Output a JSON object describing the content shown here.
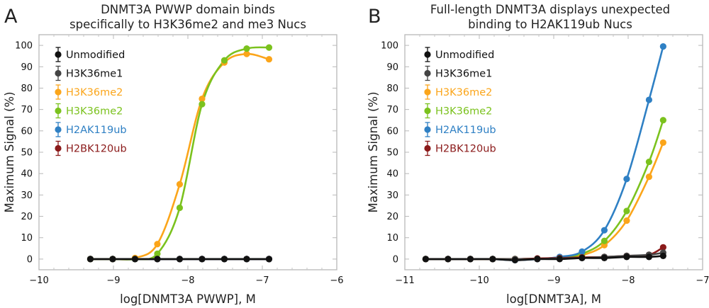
{
  "chart_data": [
    {
      "type": "line",
      "panel_label": "A",
      "title": [
        "DNMT3A PWWP domain binds",
        "specifically to H3K36me2 and me3 Nucs"
      ],
      "xlabel": "log[DNMT3A PWWP], M",
      "ylabel": "Maximum Signal (%)",
      "xlim": [
        -10,
        -6
      ],
      "ylim": [
        -5,
        105
      ],
      "xticks": [
        -10,
        -9,
        -8,
        -7,
        -6
      ],
      "xtick_labels": [
        "−10",
        "−9",
        "−8",
        "−7",
        "−6"
      ],
      "yticks": [
        0,
        10,
        20,
        30,
        40,
        50,
        60,
        70,
        80,
        90,
        100
      ],
      "ytick_labels": [
        "0",
        "10",
        "20",
        "30",
        "40",
        "50",
        "60",
        "70",
        "80",
        "90",
        "100"
      ],
      "legend_position": "top-left",
      "grid": false,
      "x": [
        -9.31,
        -9.01,
        -8.71,
        -8.41,
        -8.11,
        -7.81,
        -7.51,
        -7.21,
        -6.91
      ],
      "series": [
        {
          "name": "Unmodified",
          "color": "#111111",
          "values": [
            0,
            0,
            0,
            0,
            0,
            0,
            0,
            0,
            0
          ]
        },
        {
          "name": "H3K36me1",
          "color": "#444444",
          "values": [
            0,
            0,
            0,
            0,
            0,
            0,
            0,
            0,
            0
          ]
        },
        {
          "name": "H3K36me2",
          "color": "#FBA51A",
          "values": [
            0,
            0,
            0.5,
            7,
            35,
            75,
            92,
            96,
            93.5
          ]
        },
        {
          "name": "H3K36me2",
          "color": "#7BC21E",
          "values": [
            0,
            0,
            0,
            2.5,
            24,
            72.5,
            93,
            98.5,
            99
          ]
        },
        {
          "name": "H2AK119ub",
          "color": "#2F80C4",
          "values": [
            0,
            0,
            0,
            0,
            0,
            0,
            0,
            0,
            0
          ]
        },
        {
          "name": "H2BK120ub",
          "color": "#8B1A1A",
          "values": [
            0,
            0,
            0,
            0,
            0,
            0,
            0,
            0,
            0
          ]
        }
      ],
      "draw_order": [
        5,
        4,
        2,
        3,
        1,
        0
      ]
    },
    {
      "type": "line",
      "panel_label": "B",
      "title": [
        "Full-length DNMT3A displays unexpected",
        "binding to H2AK119ub Nucs"
      ],
      "xlabel": "log[DNMT3A], M",
      "ylabel": "Maximum Signal (%)",
      "xlim": [
        -11,
        -7
      ],
      "ylim": [
        -5,
        105
      ],
      "xticks": [
        -11,
        -10,
        -9,
        -8,
        -7
      ],
      "xtick_labels": [
        "−11",
        "−10",
        "−9",
        "−8",
        "−7"
      ],
      "yticks": [
        0,
        10,
        20,
        30,
        40,
        50,
        60,
        70,
        80,
        90,
        100
      ],
      "ytick_labels": [
        "0",
        "10",
        "20",
        "30",
        "40",
        "50",
        "60",
        "70",
        "80",
        "90",
        "100"
      ],
      "legend_position": "top-left",
      "grid": false,
      "x": [
        -10.72,
        -10.42,
        -10.12,
        -9.82,
        -9.52,
        -9.22,
        -8.92,
        -8.62,
        -8.32,
        -8.02,
        -7.72,
        -7.53
      ],
      "series": [
        {
          "name": "Unmodified",
          "color": "#111111",
          "values": [
            0,
            0,
            0,
            0,
            -0.5,
            0,
            0,
            0.5,
            0.5,
            1,
            1,
            1.5
          ]
        },
        {
          "name": "H3K36me1",
          "color": "#444444",
          "values": [
            0,
            0,
            0,
            0,
            0,
            0,
            0.3,
            0.5,
            1,
            1.5,
            2,
            3
          ]
        },
        {
          "name": "H3K36me2",
          "color": "#FBA51A",
          "values": [
            0,
            0,
            0,
            0,
            0,
            0.2,
            0.5,
            1.8,
            6.5,
            18,
            38.5,
            54.5
          ]
        },
        {
          "name": "H3K36me2",
          "color": "#7BC21E",
          "values": [
            0,
            0,
            0,
            0,
            0,
            0.2,
            0.7,
            2.5,
            8.5,
            22.5,
            45.5,
            65
          ]
        },
        {
          "name": "H2AK119ub",
          "color": "#2F80C4",
          "values": [
            0,
            0,
            0,
            0,
            -0.5,
            0,
            1,
            3.5,
            13.5,
            37.5,
            74.5,
            99.5
          ]
        },
        {
          "name": "H2BK120ub",
          "color": "#8B1A1A",
          "values": [
            0,
            0,
            0,
            0,
            0,
            0.3,
            0.5,
            0.8,
            1,
            1.5,
            2,
            5.5
          ]
        }
      ],
      "draw_order": [
        2,
        3,
        4,
        5,
        1,
        0
      ]
    }
  ]
}
